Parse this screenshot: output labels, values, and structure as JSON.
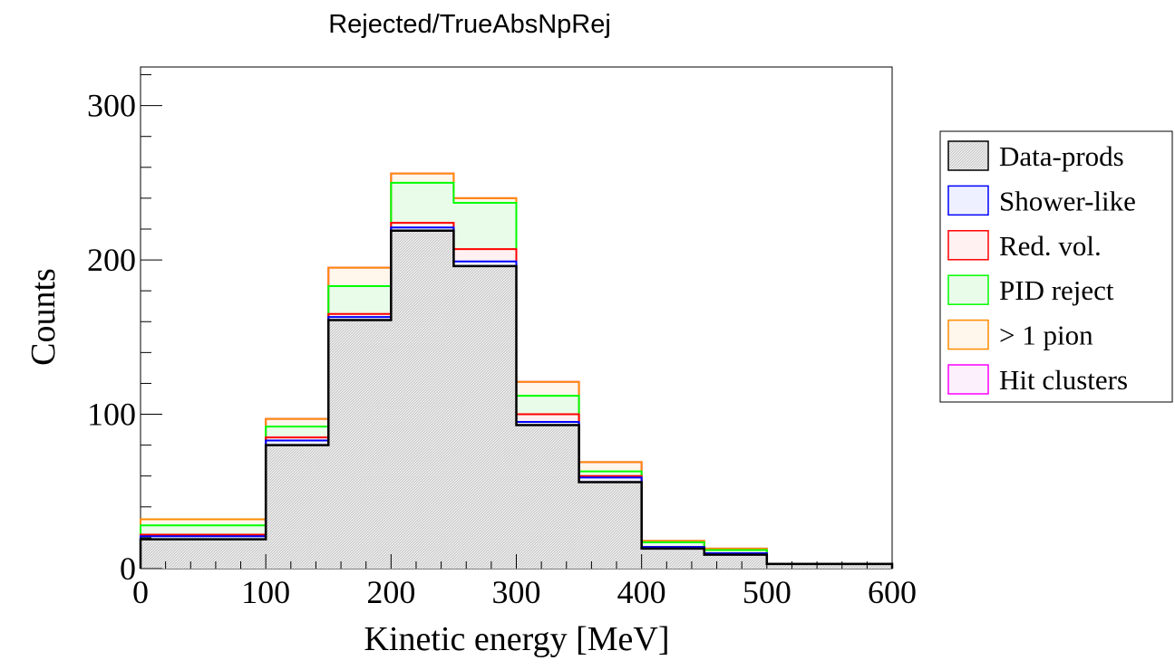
{
  "chart_data": {
    "type": "histogram",
    "title": "Rejected/TrueAbsNpRej",
    "xlabel": "Kinetic energy [MeV]",
    "ylabel": "Counts",
    "xlim": [
      0,
      600
    ],
    "ylim": [
      0,
      325
    ],
    "xticks": [
      "0",
      "100",
      "200",
      "300",
      "400",
      "500",
      "600"
    ],
    "yticks": [
      "0",
      "100",
      "200",
      "300"
    ],
    "bin_edges": [
      0,
      100,
      150,
      200,
      250,
      300,
      350,
      400,
      450,
      500,
      600
    ],
    "legend_position": "right",
    "series": [
      {
        "name": "Data-prods",
        "color": "#000000",
        "values": [
          19,
          80,
          161,
          219,
          196,
          93,
          56,
          13,
          9,
          3
        ]
      },
      {
        "name": "Shower-like",
        "color": "#0000ff",
        "values": [
          21,
          83,
          163,
          221,
          199,
          95,
          59,
          14,
          10,
          3
        ]
      },
      {
        "name": "Red. vol.",
        "color": "#ff0000",
        "values": [
          22,
          85,
          165,
          224,
          207,
          100,
          60,
          14,
          10,
          3
        ]
      },
      {
        "name": "PID reject",
        "color": "#00ff00",
        "values": [
          28,
          92,
          183,
          250,
          237,
          112,
          63,
          17,
          12,
          3
        ]
      },
      {
        "name": "> 1 pion",
        "color": "#ff8c00",
        "values": [
          32,
          97,
          195,
          256,
          240,
          121,
          69,
          18,
          13,
          3
        ]
      },
      {
        "name": "Hit clusters",
        "color": "#ff00ff",
        "values": [
          32,
          97,
          195,
          256,
          240,
          121,
          69,
          18,
          13,
          3
        ]
      }
    ]
  }
}
